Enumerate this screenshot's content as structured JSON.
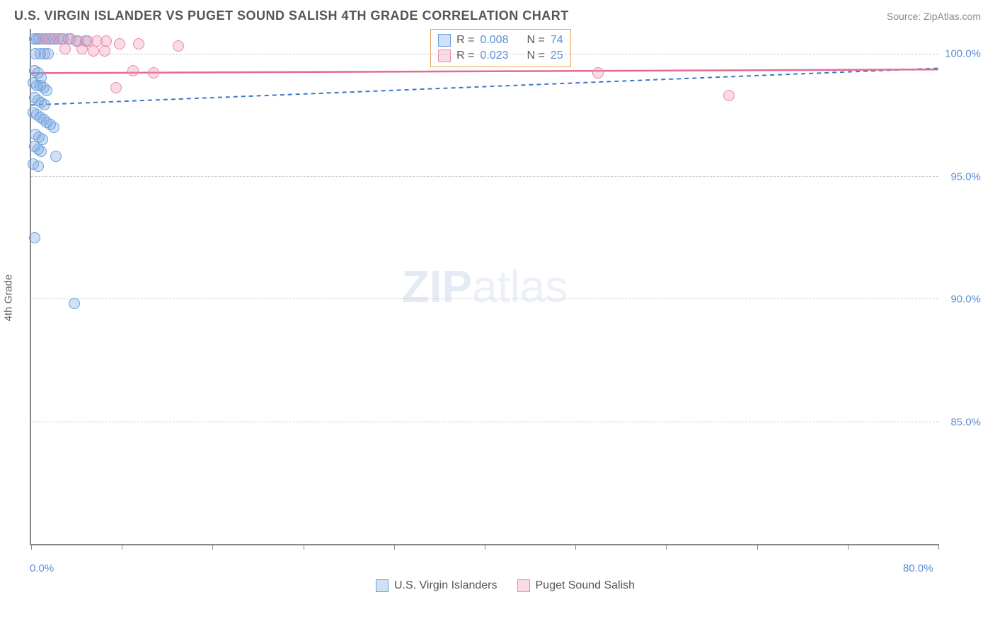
{
  "header": {
    "title": "U.S. VIRGIN ISLANDER VS PUGET SOUND SALISH 4TH GRADE CORRELATION CHART",
    "source": "Source: ZipAtlas.com"
  },
  "watermark": {
    "bold": "ZIP",
    "light": "atlas"
  },
  "chart": {
    "type": "scatter",
    "ylabel": "4th Grade",
    "background_color": "#ffffff",
    "grid_color": "#cccccc",
    "axis_color": "#888888",
    "xlim": [
      0,
      80
    ],
    "ylim": [
      80,
      101
    ],
    "xtick_positions": [
      0,
      8,
      16,
      24,
      32,
      40,
      48,
      56,
      64,
      72,
      80
    ],
    "ytick_positions": [
      85,
      90,
      95,
      100
    ],
    "ytick_labels": [
      "85.0%",
      "90.0%",
      "95.0%",
      "100.0%"
    ],
    "x_left_label": "0.0%",
    "x_right_label": "80.0%",
    "marker_radius": 8,
    "series": [
      {
        "name": "U.S. Virgin Islanders",
        "color_fill": "rgba(122,167,224,0.35)",
        "color_stroke": "#6a9fe0",
        "r_value": "0.008",
        "n_value": "74",
        "trend": {
          "y1": 97.9,
          "y2": 99.4,
          "dash": "6,5",
          "stroke": "#3b78c4",
          "width": 2
        },
        "points": [
          [
            0.3,
            100.6
          ],
          [
            0.5,
            100.6
          ],
          [
            0.7,
            100.6
          ],
          [
            1.0,
            100.6
          ],
          [
            1.3,
            100.6
          ],
          [
            1.6,
            100.6
          ],
          [
            2.0,
            100.6
          ],
          [
            2.4,
            100.6
          ],
          [
            2.8,
            100.6
          ],
          [
            3.3,
            100.6
          ],
          [
            4.0,
            100.5
          ],
          [
            4.8,
            100.5
          ],
          [
            0.4,
            100.0
          ],
          [
            0.8,
            100.0
          ],
          [
            1.2,
            100.0
          ],
          [
            1.5,
            100.0
          ],
          [
            0.3,
            99.3
          ],
          [
            0.6,
            99.2
          ],
          [
            0.9,
            99.0
          ],
          [
            0.2,
            98.8
          ],
          [
            0.5,
            98.7
          ],
          [
            0.8,
            98.7
          ],
          [
            1.1,
            98.6
          ],
          [
            1.4,
            98.5
          ],
          [
            0.3,
            98.2
          ],
          [
            0.6,
            98.1
          ],
          [
            0.9,
            98.0
          ],
          [
            1.2,
            97.9
          ],
          [
            0.2,
            97.6
          ],
          [
            0.5,
            97.5
          ],
          [
            0.8,
            97.4
          ],
          [
            1.1,
            97.3
          ],
          [
            1.4,
            97.2
          ],
          [
            1.7,
            97.1
          ],
          [
            2.0,
            97.0
          ],
          [
            0.4,
            96.7
          ],
          [
            0.7,
            96.6
          ],
          [
            1.0,
            96.5
          ],
          [
            0.3,
            96.2
          ],
          [
            0.6,
            96.1
          ],
          [
            0.9,
            96.0
          ],
          [
            0.2,
            95.5
          ],
          [
            0.6,
            95.4
          ],
          [
            0.3,
            92.5
          ],
          [
            3.8,
            89.8
          ],
          [
            2.2,
            95.8
          ]
        ]
      },
      {
        "name": "Puget Sound Salish",
        "color_fill": "rgba(240,150,175,0.35)",
        "color_stroke": "#e88aaa",
        "r_value": "0.023",
        "n_value": "25",
        "trend": {
          "y1": 99.2,
          "y2": 99.35,
          "dash": "",
          "stroke": "#e46a94",
          "width": 2.5
        },
        "points": [
          [
            1.0,
            100.6
          ],
          [
            1.8,
            100.6
          ],
          [
            2.6,
            100.6
          ],
          [
            3.5,
            100.6
          ],
          [
            4.2,
            100.5
          ],
          [
            5.0,
            100.5
          ],
          [
            5.8,
            100.5
          ],
          [
            6.6,
            100.5
          ],
          [
            7.8,
            100.4
          ],
          [
            9.5,
            100.4
          ],
          [
            3.0,
            100.2
          ],
          [
            4.5,
            100.2
          ],
          [
            5.5,
            100.1
          ],
          [
            6.5,
            100.1
          ],
          [
            13.0,
            100.3
          ],
          [
            9.0,
            99.3
          ],
          [
            10.8,
            99.2
          ],
          [
            7.5,
            98.6
          ],
          [
            50.0,
            99.2
          ],
          [
            61.5,
            98.3
          ]
        ]
      }
    ],
    "legend_box": {
      "left_pct": 44,
      "top_pct": 0
    },
    "label_color": "#5b8dd6",
    "title_color": "#555555",
    "title_fontsize": 18,
    "tick_fontsize": 15
  }
}
